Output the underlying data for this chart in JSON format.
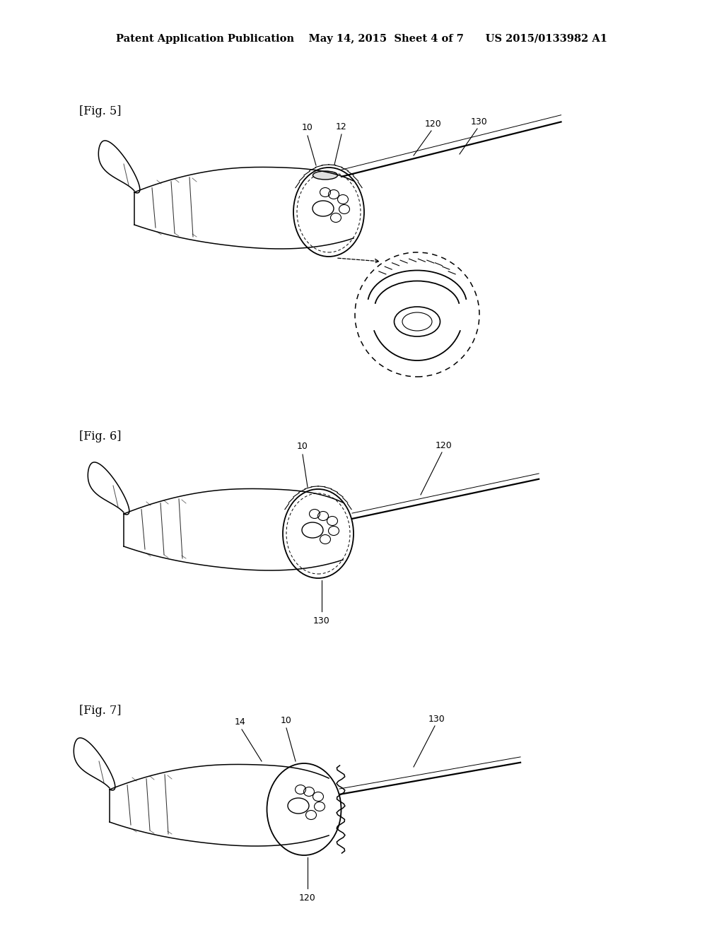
{
  "header": "Patent Application Publication    May 14, 2015  Sheet 4 of 7      US 2015/0133982 A1",
  "fig5_label": "[Fig. 5]",
  "fig6_label": "[Fig. 6]",
  "fig7_label": "[Fig. 7]",
  "label_10": "10",
  "label_12": "12",
  "label_120": "120",
  "label_130": "130",
  "label_14": "14",
  "bg_color": "#ffffff",
  "line_color": "#000000"
}
